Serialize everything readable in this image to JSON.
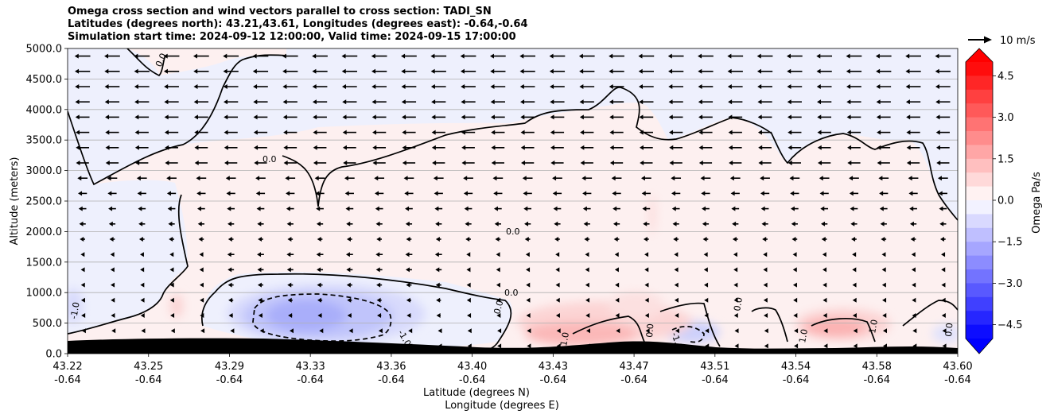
{
  "chart_data": {
    "type": "contourf",
    "title_lines": [
      "Omega cross section and wind vectors parallel to cross section: TADI_SN",
      "Latitudes (degrees north): 43.21,43.61, Longitudes (degrees east): -0.64,-0.64",
      "Simulation start time: 2024-09-12 12:00:00, Valid time: 2024-09-15 17:00:00"
    ],
    "xlabel": "Latitude (degrees N)",
    "xlabel2": "Longitude (degrees E)",
    "ylabel": "Altitude (meters)",
    "x_ticks": [
      {
        "lat": "43.22",
        "lon": "-0.64"
      },
      {
        "lat": "43.25",
        "lon": "-0.64"
      },
      {
        "lat": "43.29",
        "lon": "-0.64"
      },
      {
        "lat": "43.33",
        "lon": "-0.64"
      },
      {
        "lat": "43.36",
        "lon": "-0.64"
      },
      {
        "lat": "43.40",
        "lon": "-0.64"
      },
      {
        "lat": "43.43",
        "lon": "-0.64"
      },
      {
        "lat": "43.47",
        "lon": "-0.64"
      },
      {
        "lat": "43.51",
        "lon": "-0.64"
      },
      {
        "lat": "43.54",
        "lon": "-0.64"
      },
      {
        "lat": "43.58",
        "lon": "-0.64"
      },
      {
        "lat": "43.60",
        "lon": "-0.64"
      }
    ],
    "y_ticks": [
      "0.0",
      "500.0",
      "1000.0",
      "1500.0",
      "2000.0",
      "2500.0",
      "3000.0",
      "3500.0",
      "4000.0",
      "4500.0",
      "5000.0"
    ],
    "ylim": [
      0,
      5000
    ],
    "grid": "horizontal",
    "colorbar": {
      "label": "Omega Pa/s",
      "ticks": [
        "4.5",
        "3.0",
        "1.5",
        "0.0",
        "−1.5",
        "−3.0",
        "−4.5"
      ],
      "range": [
        -5,
        5
      ],
      "colormap": "bwr",
      "extend": "both"
    },
    "quiver_key": "10 m/s",
    "contour_labels": [
      "0.0",
      "0.0",
      "0.0",
      "0.0",
      "0.0",
      "0.0",
      "-1.0",
      "-1.0",
      "-1.0",
      "1.0",
      "1.0",
      "1.0",
      "0.0",
      "0.0"
    ],
    "features": {
      "negative_core": {
        "lat": 43.33,
        "alt": 650,
        "omega": -3.0
      },
      "positive_core_1": {
        "lat": 43.44,
        "alt": 250,
        "omega": 1.5
      },
      "positive_core_2": {
        "lat": 43.56,
        "alt": 380,
        "omega": 2.0
      },
      "wind": "mostly northerly (pointing toward lower latitude), strongest aloft"
    },
    "colors": {
      "negative": "#0000ff",
      "positive": "#ff0000",
      "terrain": "#000000"
    }
  }
}
